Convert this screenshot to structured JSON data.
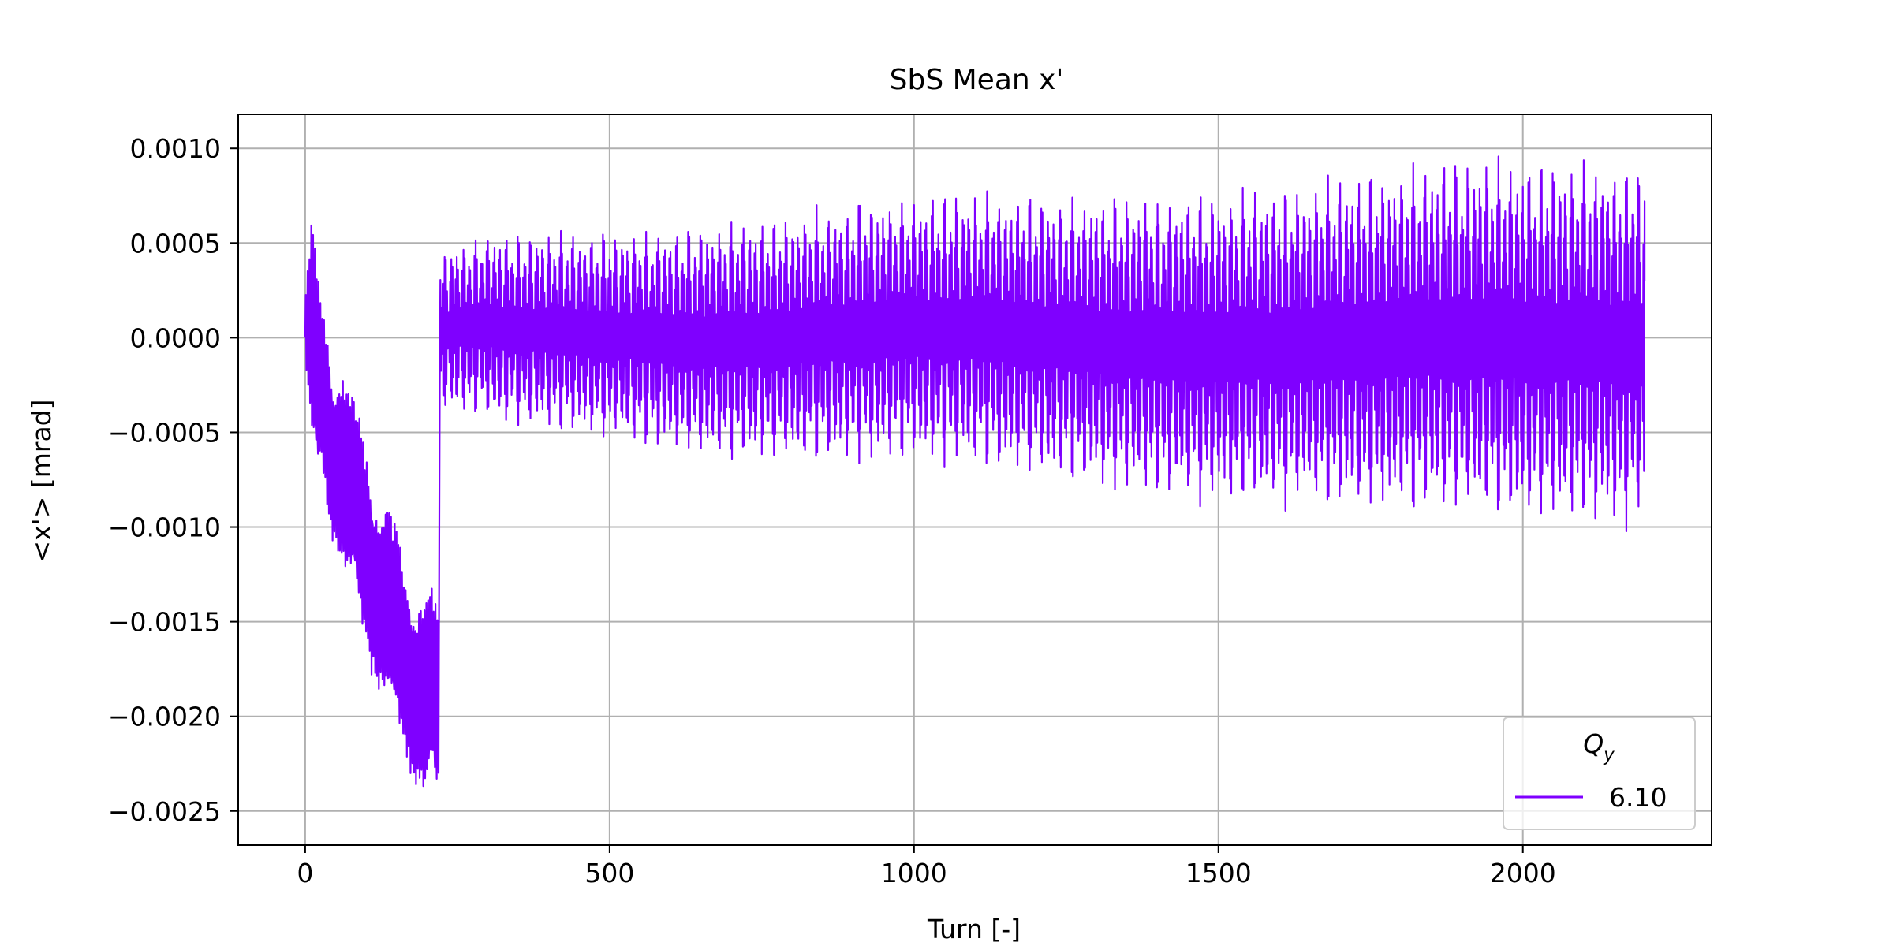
{
  "chart_data": {
    "type": "line",
    "title": "SbS Mean x'",
    "xlabel": "Turn [-]",
    "ylabel": "<x'> [mrad]",
    "xlim": [
      -110,
      2310
    ],
    "ylim": [
      -0.00268,
      0.00118
    ],
    "xticks": [
      0,
      500,
      1000,
      1500,
      2000
    ],
    "xtick_labels": [
      "0",
      "500",
      "1000",
      "1500",
      "2000"
    ],
    "yticks": [
      0.001,
      0.0005,
      0.0,
      -0.0005,
      -0.001,
      -0.0015,
      -0.002,
      -0.0025
    ],
    "ytick_labels": [
      "0.0010",
      "0.0005",
      "0.0000",
      "−0.0005",
      "−0.0010",
      "−0.0015",
      "−0.0020",
      "−0.0025"
    ],
    "grid": true,
    "legend": {
      "title": "Q_y",
      "title_main": "Q",
      "title_sub": "y",
      "position": "lower-right"
    },
    "series": [
      {
        "name": "6.10",
        "color": "#7f00ff",
        "envelope_x": [
          0,
          5,
          10,
          20,
          30,
          45,
          60,
          80,
          100,
          120,
          140,
          160,
          180,
          200,
          219
        ],
        "envelope_upper": [
          0.0002,
          0.0005,
          0.00061,
          0.0004,
          0.0002,
          -5e-05,
          -8e-05,
          -0.0003,
          -0.0005,
          -0.0008,
          -0.0009,
          -0.0011,
          -0.0013,
          -0.0013,
          -0.00135
        ],
        "envelope_lower": [
          -0.0002,
          -0.0004,
          -0.0007,
          -0.0009,
          -0.0008,
          -0.0011,
          -0.0013,
          -0.0015,
          -0.0017,
          -0.0019,
          -0.0021,
          -0.0022,
          -0.0024,
          -0.0025,
          -0.0025
        ],
        "oscillation_x": [
          221,
          300,
          400,
          500,
          600,
          700,
          800,
          900,
          1000,
          1100,
          1200,
          1300,
          1400,
          1500,
          1600,
          1700,
          1800,
          1900,
          2000,
          2100,
          2200
        ],
        "oscillation_upper": [
          0.00048,
          0.00057,
          0.00057,
          0.00058,
          0.0006,
          0.00063,
          0.00068,
          0.00074,
          0.00078,
          0.00079,
          0.00078,
          0.00078,
          0.00078,
          0.0008,
          0.00083,
          0.00088,
          0.00094,
          0.00098,
          0.00098,
          0.00097,
          0.00096
        ],
        "oscillation_lower": [
          -0.0004,
          -0.00045,
          -0.0005,
          -0.00055,
          -0.00062,
          -0.00068,
          -0.00068,
          -0.00068,
          -0.00068,
          -0.0007,
          -0.00076,
          -0.00082,
          -0.00087,
          -0.0009,
          -0.00092,
          -0.00093,
          -0.00095,
          -0.00097,
          -0.001,
          -0.00102,
          -0.00103
        ],
        "end_x": 2200,
        "end_value": 0.0003
      }
    ]
  }
}
